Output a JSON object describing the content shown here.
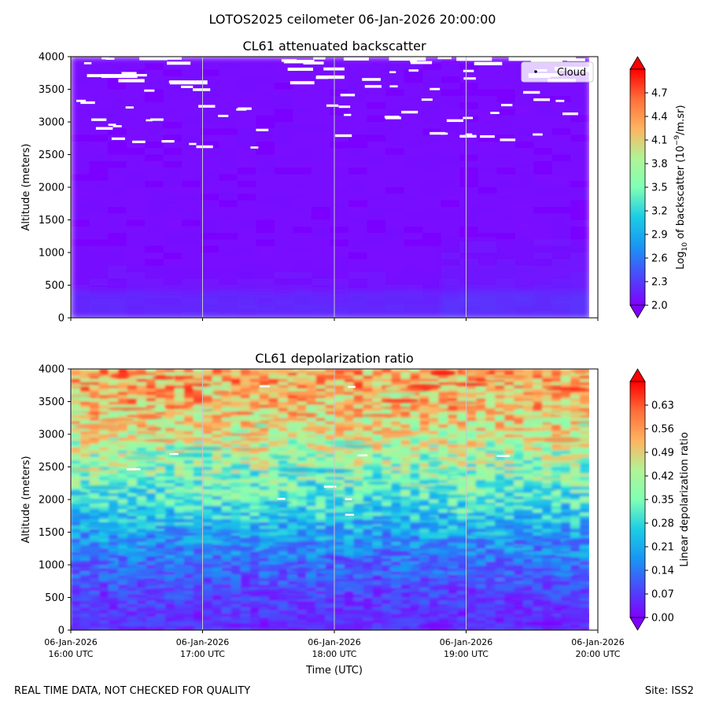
{
  "suptitle": "LOTOS2025 ceilometer 06-Jan-2026 20:00:00",
  "footer": {
    "left": "REAL TIME DATA, NOT CHECKED FOR QUALITY",
    "right": "Site: ISS2"
  },
  "chart_data": [
    {
      "type": "heatmap",
      "title": "CL61 attenuated backscatter",
      "xlabel": "",
      "ylabel": "Altitude (meters)",
      "ylim": [
        0,
        4000
      ],
      "yticks": [
        "0",
        "500",
        "1000",
        "1500",
        "2000",
        "2500",
        "3000",
        "3500",
        "4000"
      ],
      "xticks": [],
      "vertical_gridlines_hours": [
        17,
        18,
        19
      ],
      "colorbar": {
        "label_prefix": "Log",
        "label_sub": "10",
        "label_mid": " of backscatter (10",
        "label_sup": "−9",
        "label_end": "/m.sr)",
        "range": [
          2.0,
          5.0
        ],
        "ticks": [
          "2.0",
          "2.3",
          "2.6",
          "2.9",
          "3.2",
          "3.5",
          "3.8",
          "4.1",
          "4.4",
          "4.7"
        ],
        "colormap": "rainbow",
        "extend": "both"
      },
      "legend": {
        "entries": [
          "Cloud"
        ],
        "position": "top-right"
      },
      "description_values": {
        "near_surface_0_400m": 2.2,
        "bulk_400_4000m": 2.05,
        "cloud_detections_altitude_range_m": [
          2600,
          4000
        ]
      }
    },
    {
      "type": "heatmap",
      "title": "CL61 depolarization ratio",
      "xlabel": "Time (UTC)",
      "ylabel": "Altitude (meters)",
      "ylim": [
        0,
        4000
      ],
      "yticks": [
        "0",
        "500",
        "1000",
        "1500",
        "2000",
        "2500",
        "3000",
        "3500",
        "4000"
      ],
      "xticks": [
        {
          "date": "06-Jan-2026",
          "time": "16:00 UTC"
        },
        {
          "date": "06-Jan-2026",
          "time": "17:00 UTC"
        },
        {
          "date": "06-Jan-2026",
          "time": "18:00 UTC"
        },
        {
          "date": "06-Jan-2026",
          "time": "19:00 UTC"
        },
        {
          "date": "06-Jan-2026",
          "time": "20:00 UTC"
        }
      ],
      "vertical_gridlines_hours": [
        17,
        18,
        19
      ],
      "colorbar": {
        "label": "Linear depolarization ratio",
        "range": [
          0.0,
          0.7
        ],
        "ticks": [
          "0.00",
          "0.07",
          "0.14",
          "0.21",
          "0.28",
          "0.35",
          "0.42",
          "0.49",
          "0.56",
          "0.63"
        ],
        "colormap": "rainbow",
        "extend": "both"
      },
      "profile_altitude_m": [
        0,
        500,
        1000,
        1500,
        2000,
        2500,
        3000,
        3500,
        4000
      ],
      "profile_ratio": [
        0.05,
        0.07,
        0.12,
        0.2,
        0.3,
        0.38,
        0.45,
        0.52,
        0.55
      ]
    }
  ]
}
